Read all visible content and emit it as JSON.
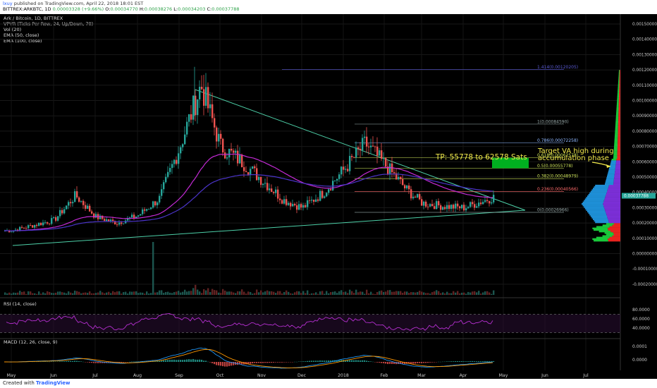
{
  "header": {
    "user": "lxuy",
    "published": "published on TradingView.com, April 22, 2018 18:01 EST",
    "symbol": "BITTREX:ARKBTC, 1D",
    "change": "0.00003328 (+9.66%)",
    "open_label": "O:",
    "open": "0.00034770",
    "high_label": "H:",
    "high": "0.00038276",
    "low_label": "L:",
    "low": "0.00034203",
    "close_label": "C:",
    "close": "0.00037788"
  },
  "legend": {
    "title": "Ark / Bitcoin, 1D, BITTREX",
    "items": [
      "VPVR (Ticks Per Row, 24, Up/Down, 70)",
      "Vol (20)",
      "EMA (50, close)",
      "EMA (100, close)"
    ]
  },
  "footer": {
    "created": "Created with",
    "brand": "TradingView"
  },
  "colors": {
    "up": "#26a69a",
    "down": "#ef5350",
    "ema50": "#c42ad6",
    "ema100": "#4b34c9",
    "triangle": "#4dd0a8",
    "rsi": "#b52fd0",
    "macd": "#2196f3",
    "signal": "#ff9800",
    "annotation": "#f2ea4c"
  },
  "chart_data": {
    "type": "candlestick",
    "x_axis": {
      "ticks": [
        "May",
        "Jun",
        "Jul",
        "Aug",
        "Sep",
        "Oct",
        "Nov",
        "Dec",
        "2018",
        "Feb",
        "Mar",
        "Apr",
        "May",
        "Jun",
        "Jul"
      ]
    },
    "y_axis": {
      "range": [
        -0.0002,
        0.0016
      ],
      "ticks": [
        "0.00150000",
        "0.00140000",
        "0.00130000",
        "0.00120000",
        "0.00110000",
        "0.00100000",
        "0.00090000",
        "0.00080000",
        "0.00070000",
        "0.00060000",
        "0.00050000",
        "0.00040000",
        "0.00030000",
        "0.00020000",
        "0.00010000",
        "0.00000000",
        "-0.00010000",
        "-0.00020000"
      ],
      "last_price": "0.00037788"
    },
    "price_path": [
      [
        "May",
        0.00015
      ],
      [
        "Jun",
        0.00022
      ],
      [
        "Jun",
        0.00038
      ],
      [
        "Jul",
        0.00024
      ],
      [
        "Jul",
        0.0002
      ],
      [
        "Aug",
        0.00025
      ],
      [
        "Aug",
        0.00036
      ],
      [
        "Sep",
        0.0007
      ],
      [
        "Sep",
        0.0011
      ],
      [
        "Oct",
        0.0007
      ],
      [
        "Oct",
        0.0006
      ],
      [
        "Nov",
        0.00048
      ],
      [
        "Nov",
        0.00035
      ],
      [
        "Dec",
        0.0003
      ],
      [
        "Dec",
        0.0004
      ],
      [
        "2018",
        0.00055
      ],
      [
        "2018",
        0.00072
      ],
      [
        "Feb",
        0.00058
      ],
      [
        "Feb",
        0.00042
      ],
      [
        "Mar",
        0.00033
      ],
      [
        "Mar",
        0.00031
      ],
      [
        "Apr",
        0.0003
      ],
      [
        "Apr",
        0.00037
      ]
    ],
    "fibonacci": [
      {
        "label": "1.414(0.00120205)",
        "value": 0.00120205
      },
      {
        "label": "1(0.00084590)",
        "value": 0.0008459
      },
      {
        "label": "0.786(0.00072258)",
        "value": 0.00072258
      },
      {
        "label": "0.618(0.00062578)",
        "value": 0.00062578
      },
      {
        "label": "0.5(0.00055778)",
        "value": 0.00055778
      },
      {
        "label": "0.382(0.00048979)",
        "value": 0.00048979
      },
      {
        "label": "0.236(0.00040566)",
        "value": 0.00040566
      },
      {
        "label": "0(0.00026966)",
        "value": 0.00026966
      }
    ],
    "annotations": {
      "tp": "TP: 55778 to 62578 Sats",
      "target_line1": "Target VA high during",
      "target_line2": "accumulation phase"
    },
    "rsi": {
      "legend": "RSI (14, close)",
      "ticks": [
        "80.0000",
        "60.0000",
        "40.0000"
      ],
      "range": [
        20,
        100
      ],
      "bands": [
        70,
        30
      ]
    },
    "macd": {
      "legend": "MACD (12, 26, close, 9)",
      "ticks": [
        "0.0001",
        "0.0000"
      ]
    }
  }
}
